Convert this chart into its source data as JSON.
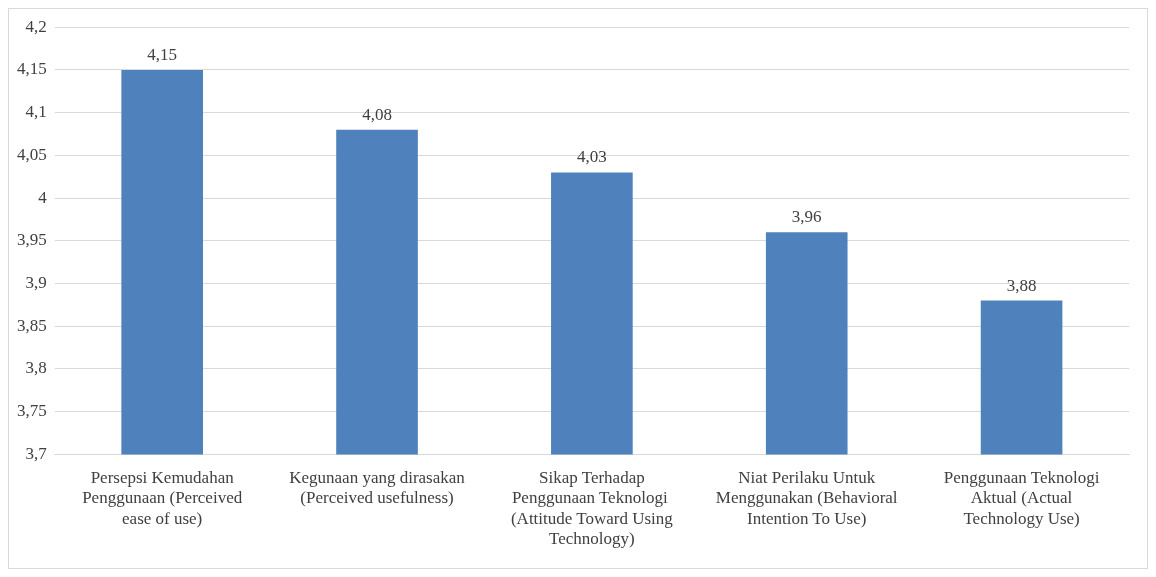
{
  "chart_data": {
    "type": "bar",
    "categories": [
      "Persepsi Kemudahan Penggunaan (Perceived ease of use)",
      "Kegunaan yang dirasakan (Perceived usefulness)",
      "Sikap Terhadap Penggunaan Teknologi  (Attitude Toward Using Technology)",
      "Niat Perilaku Untuk Menggunakan (Behavioral Intention To Use)",
      "Penggunaan Teknologi Aktual (Actual Technology Use)"
    ],
    "values": [
      4.15,
      4.08,
      4.03,
      3.96,
      3.88
    ],
    "value_labels": [
      "4,15",
      "4,08",
      "4,03",
      "3,96",
      "3,88"
    ],
    "color": "#4f81bd",
    "ylim": [
      3.7,
      4.2
    ],
    "yticks": [
      {
        "value": 3.7,
        "label": "3,7"
      },
      {
        "value": 3.75,
        "label": "3,75"
      },
      {
        "value": 3.8,
        "label": "3,8"
      },
      {
        "value": 3.85,
        "label": "3,85"
      },
      {
        "value": 3.9,
        "label": "3,9"
      },
      {
        "value": 3.95,
        "label": "3,95"
      },
      {
        "value": 4,
        "label": "4"
      },
      {
        "value": 4.05,
        "label": "4,05"
      },
      {
        "value": 4.1,
        "label": "4,1"
      },
      {
        "value": 4.15,
        "label": "4,15"
      },
      {
        "value": 4.2,
        "label": "4,2"
      }
    ],
    "grid": "y",
    "legend": false
  }
}
